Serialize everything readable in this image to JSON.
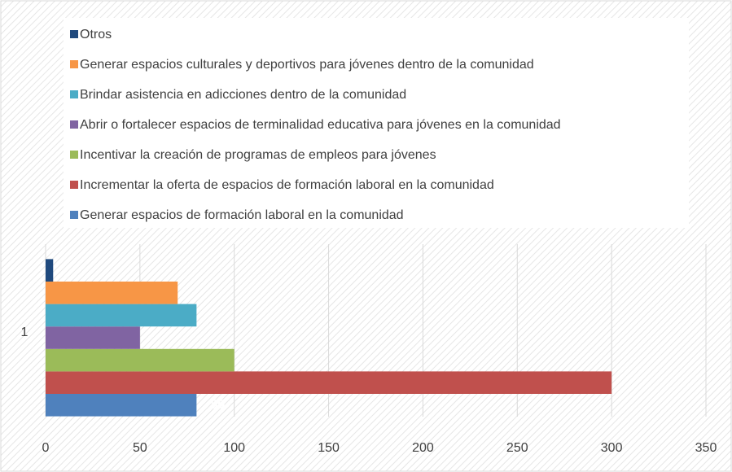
{
  "chart_data": {
    "type": "bar",
    "orientation": "horizontal",
    "categories": [
      "1"
    ],
    "series": [
      {
        "name": "Generar espacios de formación laboral en la comunidad",
        "color": "#4f81bd",
        "values": [
          80
        ],
        "value_labels": [
          "80"
        ]
      },
      {
        "name": "Incrementar la oferta de espacios de formación laboral en la comunidad",
        "color": "#c0504d",
        "values": [
          300
        ]
      },
      {
        "name": "Incentivar la creación de programas de empleos para jóvenes",
        "color": "#9bbb59",
        "values": [
          100
        ]
      },
      {
        "name": "Abrir o fortalecer espacios de terminalidad educativa para jóvenes en la comunidad",
        "color": "#8064a2",
        "values": [
          50
        ]
      },
      {
        "name": "Brindar asistencia en adicciones dentro de la comunidad",
        "color": "#4bacc6",
        "values": [
          80
        ]
      },
      {
        "name": "Generar espacios culturales y deportivos para jóvenes dentro de la comunidad",
        "color": "#f79646",
        "values": [
          70
        ]
      },
      {
        "name": "Otros",
        "color": "#1f497d",
        "values": [
          4
        ]
      }
    ],
    "xlim": [
      0,
      350
    ],
    "xticks": [
      0,
      50,
      100,
      150,
      200,
      250,
      300,
      350
    ],
    "grid": true,
    "legend": "top"
  }
}
